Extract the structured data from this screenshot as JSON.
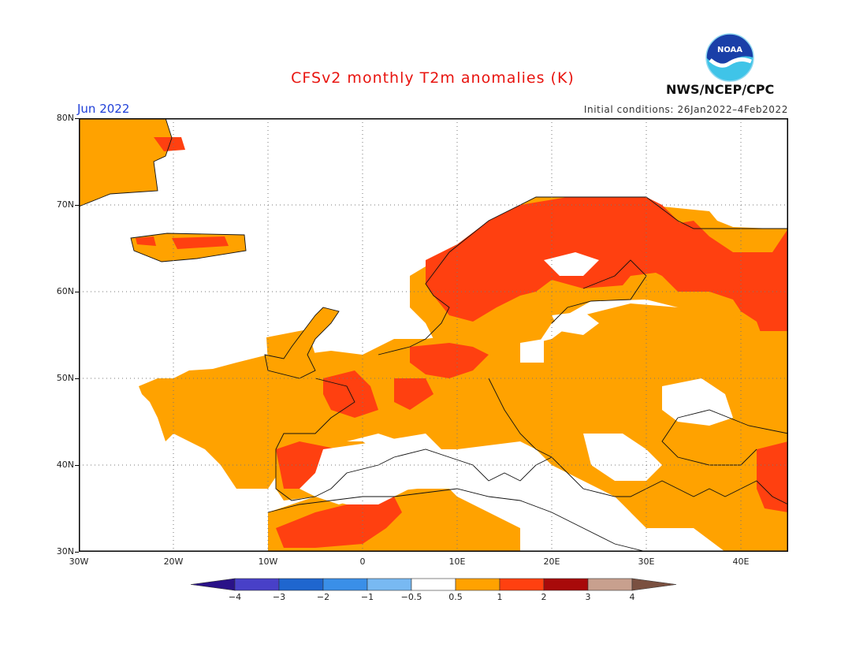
{
  "header": {
    "title": "CFSv2 monthly T2m anomalies (K)",
    "agency": "NWS/NCEP/CPC",
    "logo_text": "NOAA",
    "period": "Jun 2022",
    "init_conditions": "Initial conditions: 26Jan2022–4Feb2022"
  },
  "map": {
    "lon_range": [
      -30,
      45
    ],
    "lat_range": [
      30,
      80
    ],
    "lat_ticks": [
      {
        "value": 80,
        "label": "80N"
      },
      {
        "value": 70,
        "label": "70N"
      },
      {
        "value": 60,
        "label": "60N"
      },
      {
        "value": 50,
        "label": "50N"
      },
      {
        "value": 40,
        "label": "40N"
      },
      {
        "value": 30,
        "label": "30N"
      }
    ],
    "lon_ticks": [
      {
        "value": -30,
        "label": "30W"
      },
      {
        "value": -20,
        "label": "20W"
      },
      {
        "value": -10,
        "label": "10W"
      },
      {
        "value": 0,
        "label": "0"
      },
      {
        "value": 10,
        "label": "10E"
      },
      {
        "value": 20,
        "label": "20E"
      },
      {
        "value": 30,
        "label": "30E"
      },
      {
        "value": 40,
        "label": "40E"
      }
    ],
    "grid": "dotted"
  },
  "colorbar": {
    "bins": [
      {
        "lo": -4,
        "hi": -3,
        "color": "#4840c8"
      },
      {
        "lo": -3,
        "hi": -2,
        "color": "#1f66cf"
      },
      {
        "lo": -2,
        "hi": -1,
        "color": "#3a8fe8"
      },
      {
        "lo": -1,
        "hi": -0.5,
        "color": "#78b9f2"
      },
      {
        "lo": -0.5,
        "hi": 0.5,
        "color": "#ffffff"
      },
      {
        "lo": 0.5,
        "hi": 1,
        "color": "#ffa200"
      },
      {
        "lo": 1,
        "hi": 2,
        "color": "#ff4010"
      },
      {
        "lo": 2,
        "hi": 3,
        "color": "#a80a0a"
      },
      {
        "lo": 3,
        "hi": 4,
        "color": "#c8a08e"
      }
    ],
    "low_extend_color": "#2a1288",
    "high_extend_color": "#7a5040",
    "tick_labels": [
      "−4",
      "−3",
      "−2",
      "−1",
      "−0.5",
      "0.5",
      "1",
      "2",
      "3",
      "4"
    ]
  }
}
